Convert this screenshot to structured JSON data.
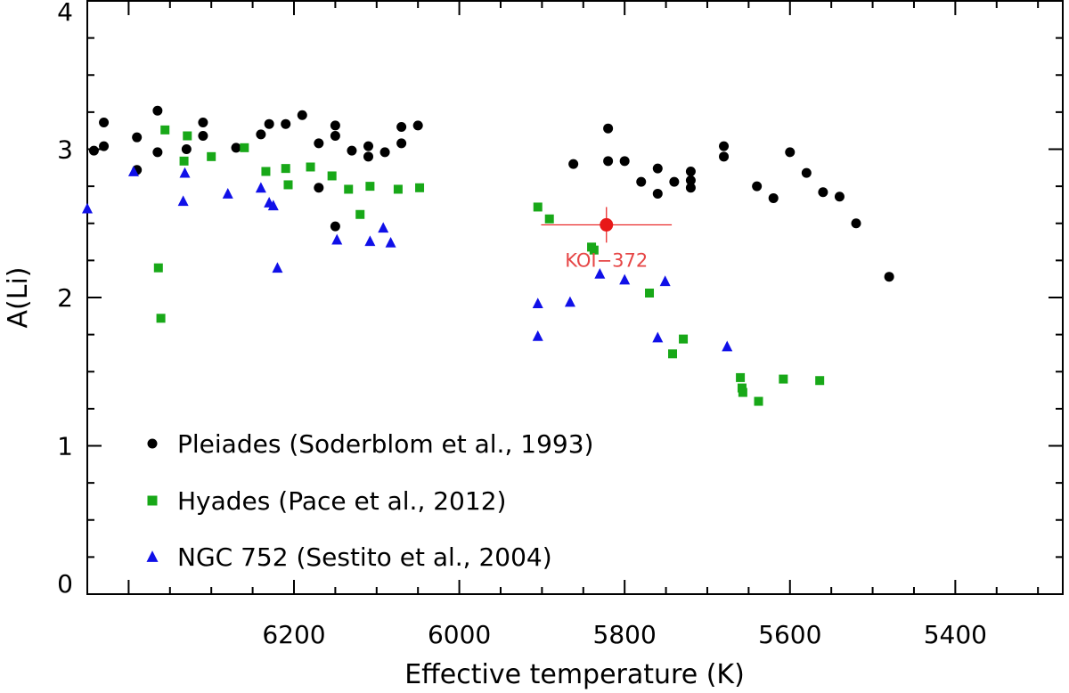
{
  "chart_data": {
    "type": "scatter",
    "title": "",
    "xlabel": "Effective temperature (K)",
    "ylabel": "A(Li)",
    "xlim": [
      6450,
      5270
    ],
    "ylim": [
      0,
      4
    ],
    "x_ticks": [
      6200,
      6000,
      5800,
      5600,
      5400
    ],
    "y_ticks": [
      0,
      1,
      2,
      3,
      4
    ],
    "grid": false,
    "legend_position": "bottom-left",
    "colors": {
      "Pleiades": "#000000",
      "Hyades": "#18a818",
      "NGC752": "#1010e8",
      "KOI": "#e81818"
    },
    "series": [
      {
        "name": "Pleiades (Soderblom et al., 1993)",
        "marker": "circle",
        "color": "#000000",
        "points": [
          [
            6442,
            2.99
          ],
          [
            6430,
            3.02
          ],
          [
            6430,
            3.18
          ],
          [
            6390,
            2.86
          ],
          [
            6390,
            3.08
          ],
          [
            6365,
            3.26
          ],
          [
            6365,
            2.98
          ],
          [
            6330,
            3.0
          ],
          [
            6310,
            3.18
          ],
          [
            6310,
            3.09
          ],
          [
            6270,
            3.01
          ],
          [
            6240,
            3.1
          ],
          [
            6230,
            3.17
          ],
          [
            6210,
            3.17
          ],
          [
            6190,
            3.23
          ],
          [
            6170,
            3.04
          ],
          [
            6170,
            2.74
          ],
          [
            6150,
            3.16
          ],
          [
            6150,
            3.09
          ],
          [
            6150,
            2.48
          ],
          [
            6130,
            2.99
          ],
          [
            6110,
            3.02
          ],
          [
            6110,
            2.95
          ],
          [
            6090,
            2.98
          ],
          [
            6070,
            3.04
          ],
          [
            6070,
            3.15
          ],
          [
            6050,
            3.16
          ],
          [
            5862,
            2.9
          ],
          [
            5820,
            3.14
          ],
          [
            5820,
            2.92
          ],
          [
            5800,
            2.92
          ],
          [
            5780,
            2.78
          ],
          [
            5760,
            2.87
          ],
          [
            5760,
            2.7
          ],
          [
            5740,
            2.78
          ],
          [
            5720,
            2.74
          ],
          [
            5720,
            2.79
          ],
          [
            5720,
            2.85
          ],
          [
            5680,
            3.02
          ],
          [
            5680,
            2.95
          ],
          [
            5640,
            2.75
          ],
          [
            5620,
            2.67
          ],
          [
            5600,
            2.98
          ],
          [
            5580,
            2.84
          ],
          [
            5560,
            2.71
          ],
          [
            5540,
            2.68
          ],
          [
            5520,
            2.5
          ],
          [
            5480,
            2.14
          ]
        ]
      },
      {
        "name": "Hyades (Pace et al., 2012)",
        "marker": "square",
        "color": "#18a818",
        "points": [
          [
            6356,
            3.13
          ],
          [
            6329,
            3.09
          ],
          [
            6333,
            2.92
          ],
          [
            6300,
            2.95
          ],
          [
            6260,
            3.01
          ],
          [
            6234,
            2.85
          ],
          [
            6210,
            2.87
          ],
          [
            6207,
            2.76
          ],
          [
            6180,
            2.88
          ],
          [
            6154,
            2.82
          ],
          [
            6134,
            2.73
          ],
          [
            6120,
            2.56
          ],
          [
            6108,
            2.75
          ],
          [
            6074,
            2.73
          ],
          [
            6048,
            2.74
          ],
          [
            6364,
            2.2
          ],
          [
            6361,
            1.86
          ],
          [
            5905,
            2.61
          ],
          [
            5891,
            2.53
          ],
          [
            5840,
            2.34
          ],
          [
            5837,
            2.32
          ],
          [
            5770,
            2.03
          ],
          [
            5742,
            1.62
          ],
          [
            5729,
            1.72
          ],
          [
            5660,
            1.46
          ],
          [
            5658,
            1.39
          ],
          [
            5657,
            1.36
          ],
          [
            5638,
            1.3
          ],
          [
            5608,
            1.45
          ],
          [
            5564,
            1.44
          ]
        ]
      },
      {
        "name": "NGC 752 (Sestito et al., 2004)",
        "marker": "triangle",
        "color": "#1010e8",
        "points": [
          [
            6450,
            2.6
          ],
          [
            6394,
            2.85
          ],
          [
            6332,
            2.84
          ],
          [
            6334,
            2.65
          ],
          [
            6280,
            2.7
          ],
          [
            6240,
            2.74
          ],
          [
            6230,
            2.64
          ],
          [
            6225,
            2.62
          ],
          [
            6220,
            2.2
          ],
          [
            6148,
            2.39
          ],
          [
            6108,
            2.38
          ],
          [
            6092,
            2.47
          ],
          [
            6083,
            2.37
          ],
          [
            5905,
            1.96
          ],
          [
            5905,
            1.74
          ],
          [
            5866,
            1.97
          ],
          [
            5830,
            2.16
          ],
          [
            5800,
            2.12
          ],
          [
            5760,
            1.73
          ],
          [
            5751,
            2.11
          ],
          [
            5676,
            1.67
          ]
        ]
      }
    ],
    "highlight": {
      "name": "KOI-372",
      "label": "KOI−372",
      "x": 5822,
      "y": 2.49,
      "xerr": 79,
      "yerr": 0.12,
      "color": "#e81818"
    }
  }
}
